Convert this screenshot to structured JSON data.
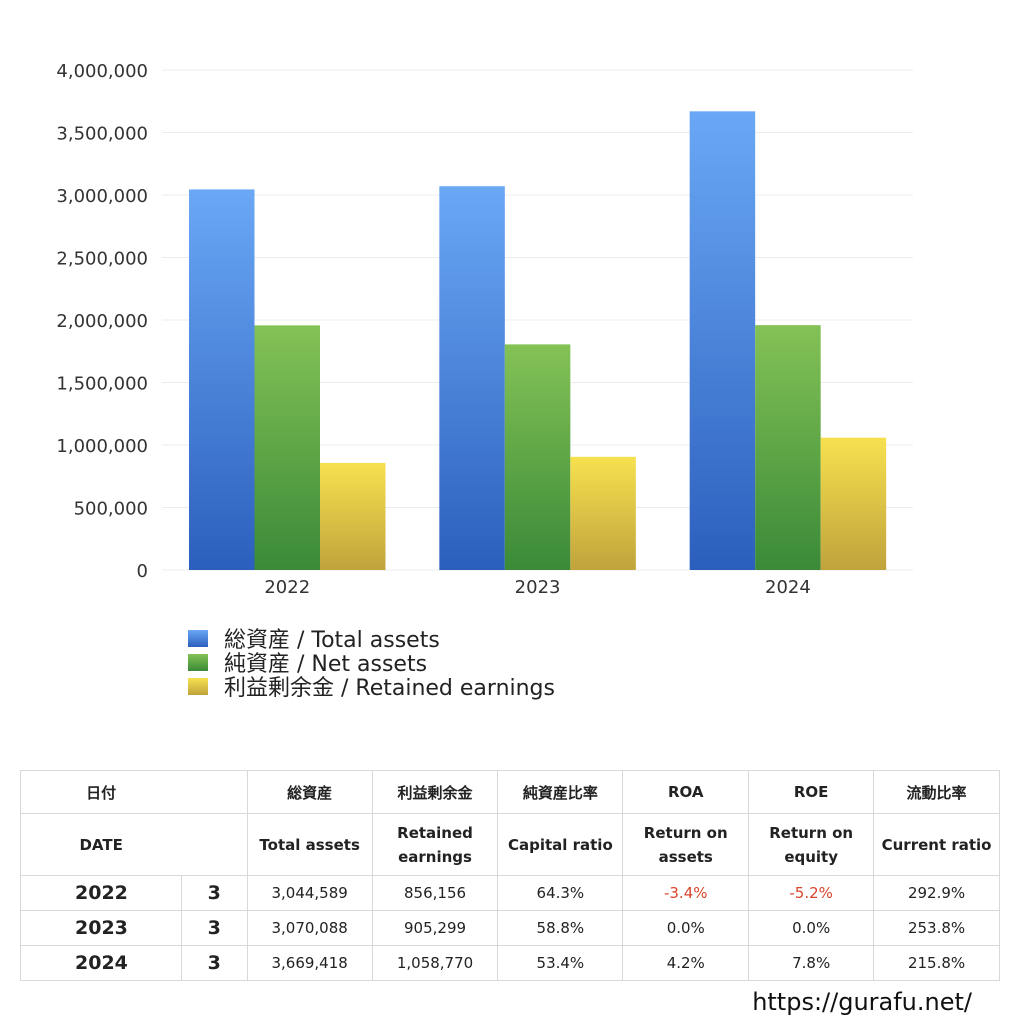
{
  "chart_data": {
    "type": "bar",
    "categories": [
      "2022",
      "2023",
      "2024"
    ],
    "series": [
      {
        "name": "総資産 / Total assets",
        "values": [
          3044589,
          3070088,
          3669418
        ],
        "color_top": "#6aa8f5",
        "color_bottom": "#2c5fbd"
      },
      {
        "name": "純資産 / Net assets",
        "values": [
          1957000,
          1805000,
          1959000
        ],
        "color_top": "#84c256",
        "color_bottom": "#3a8a38"
      },
      {
        "name": "利益剰余金 / Retained earnings",
        "values": [
          856156,
          905299,
          1058770
        ],
        "color_top": "#f7e14f",
        "color_bottom": "#c0a33c"
      }
    ],
    "ylim": [
      0,
      4000000
    ],
    "yticks": [
      "0",
      "500,000",
      "1,000,000",
      "1,500,000",
      "2,000,000",
      "2,500,000",
      "3,000,000",
      "3,500,000",
      "4,000,000"
    ],
    "grid": true,
    "legend_position": "bottom-left"
  },
  "table": {
    "headers_ja": [
      "日付",
      "総資産",
      "利益剰余金",
      "純資産比率",
      "ROA",
      "ROE",
      "流動比率"
    ],
    "headers_en": [
      "DATE",
      "Total assets",
      "Retained earnings",
      "Capital ratio",
      "Return on assets",
      "Return on equity",
      "Current ratio"
    ],
    "rows": [
      {
        "year": "2022",
        "month": "3",
        "total_assets": "3,044,589",
        "retained": "856,156",
        "capital_ratio": "64.3%",
        "roa": "-3.4%",
        "roe": "-5.2%",
        "current_ratio": "292.9%"
      },
      {
        "year": "2023",
        "month": "3",
        "total_assets": "3,070,088",
        "retained": "905,299",
        "capital_ratio": "58.8%",
        "roa": "0.0%",
        "roe": "0.0%",
        "current_ratio": "253.8%"
      },
      {
        "year": "2024",
        "month": "3",
        "total_assets": "3,669,418",
        "retained": "1,058,770",
        "capital_ratio": "53.4%",
        "roa": "4.2%",
        "roe": "7.8%",
        "current_ratio": "215.8%"
      }
    ],
    "negative_color": "#d9442c"
  },
  "footer": {
    "url": "https://gurafu.net/"
  }
}
